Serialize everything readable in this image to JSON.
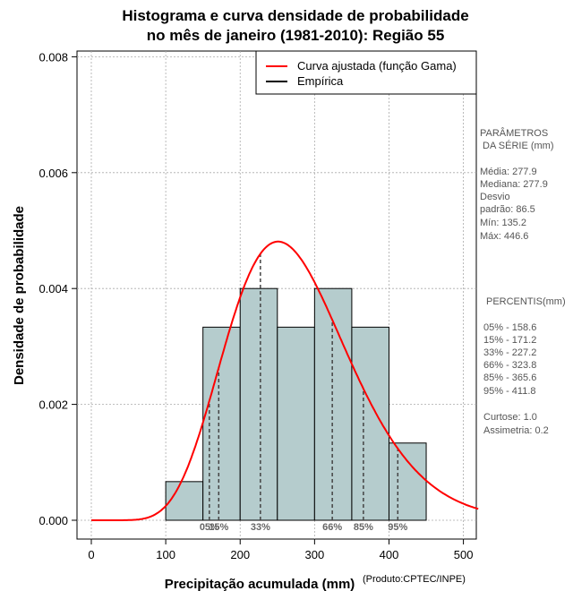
{
  "chart_data": {
    "type": "histogram",
    "title_line1": "Histograma e curva densidade de probabilidade",
    "title_line2": "no mês de janeiro (1981-2010): Região 55",
    "xlabel": "Precipitação acumulada (mm)",
    "ylabel": "Densidade de probabilidade",
    "xlim": [
      0,
      520
    ],
    "ylim": [
      0,
      0.008
    ],
    "xticks": [
      0,
      100,
      200,
      300,
      400,
      500
    ],
    "yticks": [
      "0.000",
      "0.002",
      "0.004",
      "0.006",
      "0.008"
    ],
    "bins": [
      {
        "from": 100,
        "to": 150,
        "density": 0.000667
      },
      {
        "from": 150,
        "to": 200,
        "density": 0.003333
      },
      {
        "from": 200,
        "to": 250,
        "density": 0.004
      },
      {
        "from": 250,
        "to": 300,
        "density": 0.003333
      },
      {
        "from": 300,
        "to": 350,
        "density": 0.004
      },
      {
        "from": 350,
        "to": 400,
        "density": 0.003333
      },
      {
        "from": 400,
        "to": 450,
        "density": 0.001333
      }
    ],
    "gamma_fit": {
      "mean": 277.9,
      "sd": 86.5
    },
    "legend": [
      {
        "label": "Curva ajustada (função Gama)",
        "color": "#ff0000"
      },
      {
        "label": "Empírica",
        "color": "#000000"
      }
    ],
    "percentile_markers": [
      {
        "label": "05%",
        "value": 158.6
      },
      {
        "label": "15%",
        "value": 171.2
      },
      {
        "label": "33%",
        "value": 227.2
      },
      {
        "label": "66%",
        "value": 323.8
      },
      {
        "label": "85%",
        "value": 365.6
      },
      {
        "label": "95%",
        "value": 411.8
      }
    ],
    "bar_color": "#b5cccd",
    "curve_color": "#ff0000"
  },
  "side_panel": {
    "params_title_1": "PARÂMETROS",
    "params_title_2": " DA SÉRIE (mm)",
    "media": "Média:  277.9",
    "mediana": "Mediana:  277.9",
    "desvio_1": "Desvio",
    "desvio_2": "padrão:  86.5",
    "min": "Mín:  135.2",
    "max": "Máx:  446.6",
    "percentis_title": "PERCENTIS(mm)",
    "p05": "05% -  158.6",
    "p15": "15% -  171.2",
    "p33": "33% -  227.2",
    "p66": "66% -  323.8",
    "p85": "85% -  365.6",
    "p95": "95% -  411.8",
    "curtose": "Curtose:  1.0",
    "assimetria": "Assimetria:  0.2"
  },
  "credit": "(Produto:CPTEC/INPE)"
}
